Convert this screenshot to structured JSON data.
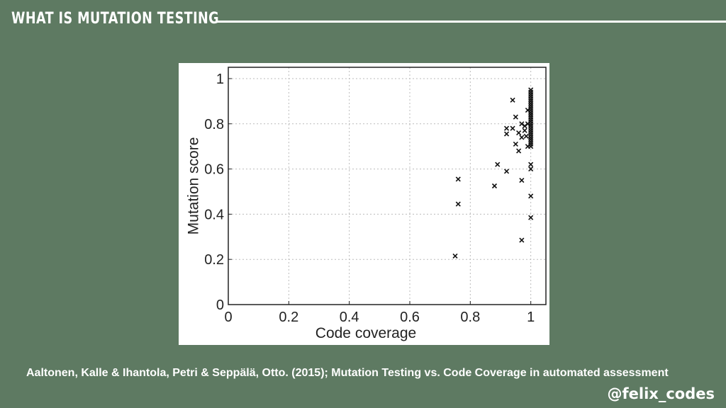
{
  "slide": {
    "title": "WHAT IS MUTATION TESTING",
    "citation": "Aaltonen, Kalle & Ihantola, Petri & Seppälä, Otto. (2015); Mutation Testing vs. Code Coverage in automated assessment",
    "handle": "@felix_codes"
  },
  "colors": {
    "background": "#5e7a62",
    "text": "#ffffff",
    "marker": "#111111",
    "grid": "#bbbbbb"
  },
  "chart_data": {
    "type": "scatter",
    "title": "",
    "xlabel": "Code coverage",
    "ylabel": "Mutation score",
    "xlim": [
      0,
      1.05
    ],
    "ylim": [
      0,
      1.05
    ],
    "xticks": [
      0,
      0.2,
      0.4,
      0.6,
      0.8,
      1
    ],
    "yticks": [
      0,
      0.2,
      0.4,
      0.6,
      0.8,
      1
    ],
    "xticklabels": [
      "0",
      "0.2",
      "0.4",
      "0.6",
      "0.8",
      "1"
    ],
    "yticklabels": [
      "0",
      "0.2",
      "0.4",
      "0.6",
      "0.8",
      "1"
    ],
    "grid": true,
    "marker": "x",
    "series": [
      {
        "points": [
          [
            0.75,
            0.215
          ],
          [
            0.76,
            0.445
          ],
          [
            0.76,
            0.555
          ],
          [
            0.88,
            0.525
          ],
          [
            0.89,
            0.62
          ],
          [
            0.92,
            0.59
          ],
          [
            0.92,
            0.755
          ],
          [
            0.92,
            0.78
          ],
          [
            0.94,
            0.905
          ],
          [
            0.94,
            0.78
          ],
          [
            0.95,
            0.83
          ],
          [
            0.95,
            0.71
          ],
          [
            0.96,
            0.68
          ],
          [
            0.96,
            0.76
          ],
          [
            0.97,
            0.8
          ],
          [
            0.97,
            0.74
          ],
          [
            0.97,
            0.55
          ],
          [
            0.97,
            0.285
          ],
          [
            0.98,
            0.79
          ],
          [
            0.98,
            0.77
          ],
          [
            0.985,
            0.745
          ],
          [
            0.99,
            0.86
          ],
          [
            0.99,
            0.7
          ],
          [
            0.99,
            0.8
          ],
          [
            1.0,
            0.95
          ],
          [
            1.0,
            0.94
          ],
          [
            1.0,
            0.93
          ],
          [
            1.0,
            0.92
          ],
          [
            1.0,
            0.91
          ],
          [
            1.0,
            0.9
          ],
          [
            1.0,
            0.89
          ],
          [
            1.0,
            0.88
          ],
          [
            1.0,
            0.87
          ],
          [
            1.0,
            0.86
          ],
          [
            1.0,
            0.85
          ],
          [
            1.0,
            0.84
          ],
          [
            1.0,
            0.83
          ],
          [
            1.0,
            0.82
          ],
          [
            1.0,
            0.81
          ],
          [
            1.0,
            0.8
          ],
          [
            1.0,
            0.79
          ],
          [
            1.0,
            0.78
          ],
          [
            1.0,
            0.77
          ],
          [
            1.0,
            0.76
          ],
          [
            1.0,
            0.75
          ],
          [
            1.0,
            0.74
          ],
          [
            1.0,
            0.73
          ],
          [
            1.0,
            0.72
          ],
          [
            1.0,
            0.71
          ],
          [
            1.0,
            0.7
          ],
          [
            1.0,
            0.62
          ],
          [
            1.0,
            0.6
          ],
          [
            1.0,
            0.48
          ],
          [
            1.0,
            0.385
          ]
        ]
      }
    ]
  }
}
